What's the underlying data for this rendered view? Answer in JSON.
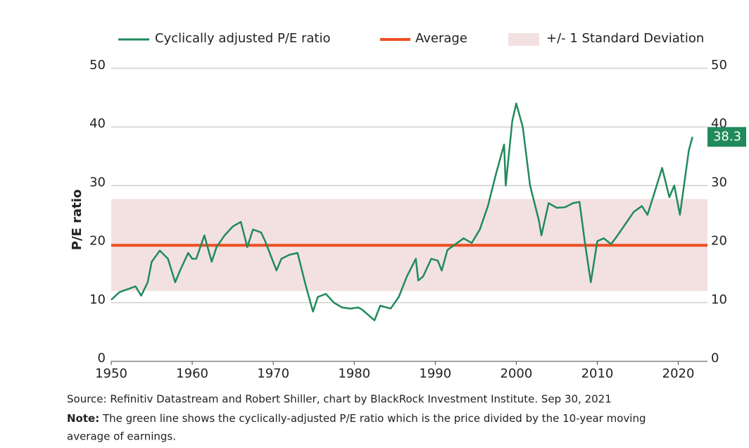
{
  "chart_data": {
    "type": "line",
    "y_label": "P/E ratio",
    "series": [
      {
        "name": "Cyclically adjusted P/E ratio",
        "color": "#218a5b",
        "x": [
          1950,
          1951,
          1952,
          1953,
          1953.7,
          1954.5,
          1955,
          1956,
          1957,
          1957.9,
          1958.5,
          1959.5,
          1960,
          1960.5,
          1961.5,
          1962.4,
          1963,
          1964,
          1965,
          1966,
          1966.8,
          1967.5,
          1968.5,
          1969,
          1970.4,
          1971,
          1972,
          1973,
          1974,
          1974.9,
          1975.5,
          1976.5,
          1977.5,
          1978.5,
          1979.5,
          1980.5,
          1981,
          1982.5,
          1983.2,
          1984.5,
          1985.5,
          1986.5,
          1987.6,
          1987.9,
          1988.5,
          1989.5,
          1990.3,
          1990.8,
          1991.5,
          1992.5,
          1993.5,
          1994.5,
          1995.5,
          1996.5,
          1997.5,
          1998.5,
          1998.7,
          1999.5,
          2000,
          2000.8,
          2001.7,
          2002.8,
          2003.1,
          2004,
          2005,
          2006,
          2007,
          2007.8,
          2008.5,
          2009.2,
          2010,
          2010.8,
          2011.7,
          2012.5,
          2013.5,
          2014.5,
          2015.5,
          2016.2,
          2017,
          2018,
          2018.9,
          2019.5,
          2020.2,
          2020.8,
          2021.3,
          2021.75
        ],
        "values": [
          10.5,
          11.8,
          12.3,
          12.8,
          11.2,
          13.5,
          17,
          18.9,
          17.5,
          13.5,
          15.5,
          18.5,
          17.5,
          17.5,
          21.5,
          17,
          19.5,
          21.5,
          23,
          23.8,
          19.5,
          22.5,
          22,
          20.5,
          15.5,
          17.5,
          18.2,
          18.5,
          13,
          8.5,
          11,
          11.5,
          10,
          9.2,
          9,
          9.2,
          8.8,
          7,
          9.5,
          9,
          11,
          14.5,
          17.5,
          13.8,
          14.5,
          17.5,
          17.2,
          15.5,
          19,
          20,
          21,
          20.2,
          22.5,
          26.5,
          32,
          37,
          30,
          41,
          44,
          40,
          30,
          24,
          21.5,
          27,
          26.2,
          26.3,
          27,
          27.2,
          20,
          13.5,
          20.5,
          21,
          20,
          21.5,
          23.5,
          25.5,
          26.5,
          25,
          28.5,
          33,
          28,
          30,
          25,
          31,
          36,
          38.3
        ]
      }
    ],
    "average_label": "Average",
    "average": 19.8,
    "average_color": "#f04e23",
    "band_label": "+/- 1 Standard Deviation",
    "band": [
      12,
      27.7
    ],
    "band_color": "#f3e1e1",
    "xlim": [
      1950,
      2023.6
    ],
    "xticks": [
      1950,
      1960,
      1970,
      1980,
      1990,
      2000,
      2010,
      2020
    ],
    "ylim": [
      0,
      50
    ],
    "yticks": [
      0,
      10,
      20,
      30,
      40,
      50
    ],
    "y2lim": [
      0,
      50
    ],
    "y2ticks": [
      0,
      10,
      20,
      30,
      40,
      50
    ],
    "grid": true,
    "source": "Source: Refinitiv Datastream and Robert Shiller, chart by BlackRock Investment Institute. Sep 30, 2021",
    "note_label": "Note:",
    "note_line1": "The green line shows the cyclically-adjusted P/E ratio which is the price divided by the 10-year moving",
    "note_line2": "average of earnings."
  }
}
